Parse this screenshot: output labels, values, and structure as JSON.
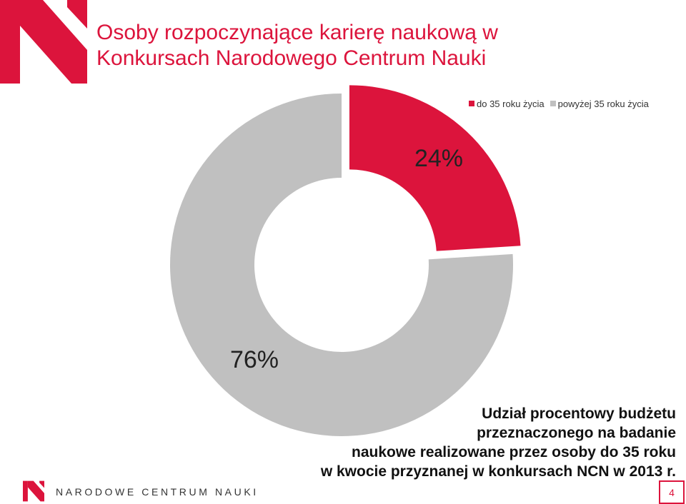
{
  "header": {
    "title_line1": "Osoby rozpoczynające karierę naukową w",
    "title_line2": "Konkursach Narodowego Centrum Nauki"
  },
  "logo": {
    "icon": "ncn-logo-icon",
    "color": "#dc143c"
  },
  "colors": {
    "accent": "#dc143c",
    "grey": "#c0c0c0"
  },
  "chart_data": {
    "type": "pie",
    "variant": "donut",
    "legend_placement": "top-right",
    "categories": [
      "do 35 roku życia",
      "powyżej 35 roku życia"
    ],
    "values": [
      24,
      76
    ],
    "labels": [
      "24%",
      "76%"
    ],
    "colors": [
      "#dc143c",
      "#c0c0c0"
    ],
    "exploded": [
      true,
      false
    ]
  },
  "note": {
    "line1": "Udział procentowy budżetu",
    "line2": "przeznaczonego na badanie",
    "line3": "naukowe realizowane przez osoby do 35 roku",
    "line4": "w kwocie przyznanej w konkursach NCN w 2013 r."
  },
  "footer": {
    "org_name": "NARODOWE CENTRUM NAUKI",
    "page_number": "4"
  }
}
